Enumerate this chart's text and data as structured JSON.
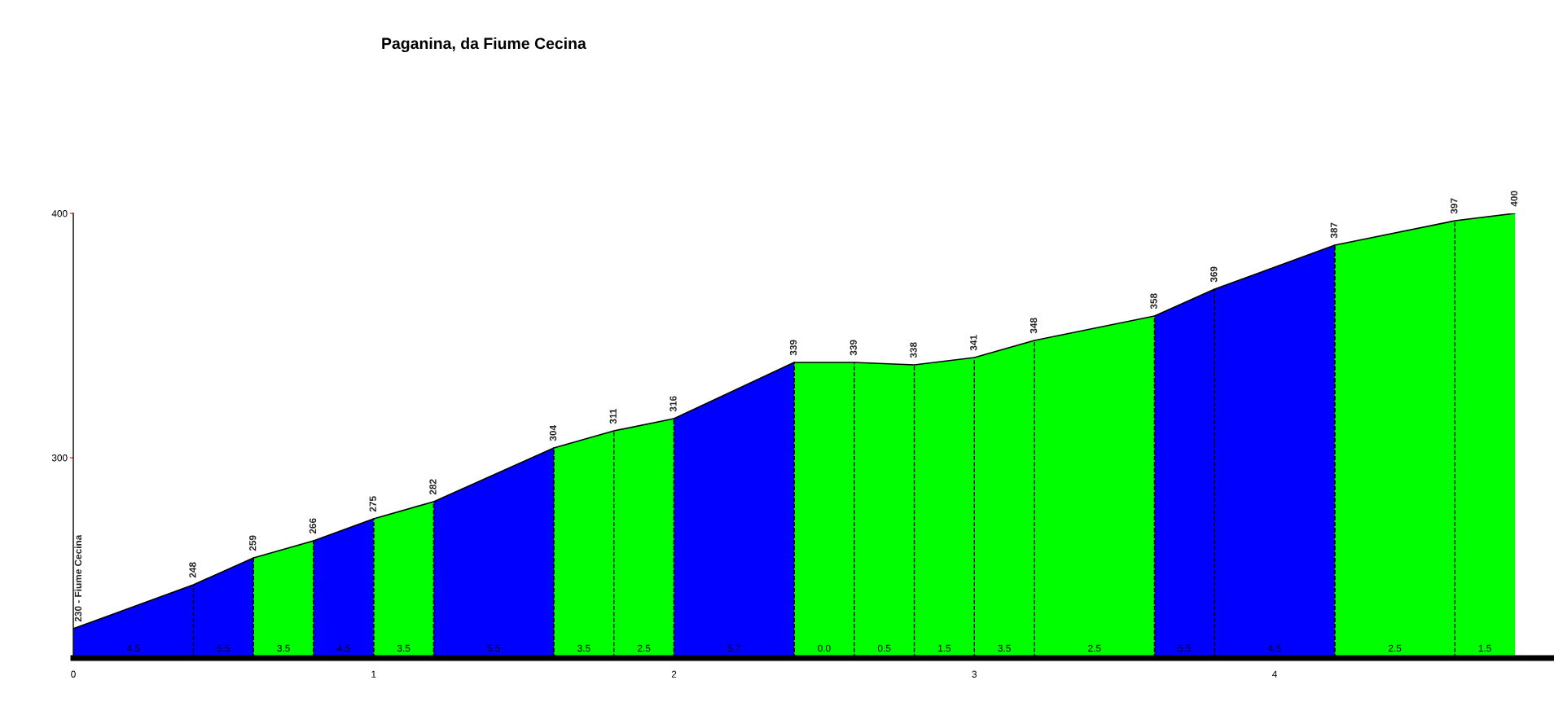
{
  "chart_data": {
    "type": "area",
    "title": "Paganina, da Fiume Cecina",
    "series": [
      {
        "color": "#0000ff",
        "x": [
          0,
          0.4,
          0.6
        ],
        "values": [
          230,
          248,
          259
        ],
        "value_labels": [
          "230 - Fiume Cecina",
          "248",
          "259"
        ]
      },
      {
        "color": "#00ff00",
        "x": [
          0.6,
          0.8
        ],
        "values": [
          259,
          266
        ],
        "value_labels": [
          null,
          "266"
        ]
      },
      {
        "color": "#0000ff",
        "x": [
          0.8,
          1.0
        ],
        "values": [
          266,
          275
        ],
        "value_labels": [
          null,
          "275"
        ]
      },
      {
        "color": "#00ff00",
        "x": [
          1.0,
          1.2
        ],
        "values": [
          275,
          282
        ],
        "value_labels": [
          null,
          "282"
        ]
      },
      {
        "color": "#0000ff",
        "x": [
          1.2,
          1.6
        ],
        "values": [
          282,
          304
        ],
        "value_labels": [
          null,
          "304"
        ]
      },
      {
        "color": "#00ff00",
        "x": [
          1.6,
          1.8,
          2.0
        ],
        "values": [
          304,
          311,
          316
        ],
        "value_labels": [
          null,
          "311",
          "316"
        ]
      },
      {
        "color": "#0000ff",
        "x": [
          2.0,
          2.4
        ],
        "values": [
          316,
          339
        ],
        "value_labels": [
          null,
          "339"
        ]
      },
      {
        "color": "#00ff00",
        "x": [
          2.4,
          2.6,
          2.8,
          3.0,
          3.2,
          3.6
        ],
        "values": [
          339,
          339,
          338,
          341,
          348,
          358
        ],
        "value_labels": [
          null,
          "339",
          "338",
          "341",
          "348",
          "358"
        ]
      },
      {
        "color": "#0000ff",
        "x": [
          3.6,
          3.8,
          4.2
        ],
        "values": [
          358,
          369,
          387
        ],
        "value_labels": [
          null,
          "369",
          "387"
        ]
      },
      {
        "color": "#00ff00",
        "x": [
          4.2,
          4.6,
          4.8
        ],
        "values": [
          387,
          397,
          400
        ],
        "value_labels": [
          null,
          "397",
          "400"
        ]
      }
    ],
    "annotations": [
      "4.5",
      "5.5",
      "3.5",
      "4.5",
      "3.5",
      "5.5",
      "3.5",
      "2.5",
      "5.7",
      "0.0",
      "0.5",
      "1.5",
      "3.5",
      "2.5",
      "5.5",
      "4.5",
      "2.5",
      "1.5"
    ],
    "xlim": [
      0,
      4.93
    ],
    "ylim": [
      218,
      400
    ],
    "xticks": [
      0,
      1,
      2,
      3,
      4
    ],
    "yticks": [
      300,
      400
    ],
    "legend": false
  }
}
